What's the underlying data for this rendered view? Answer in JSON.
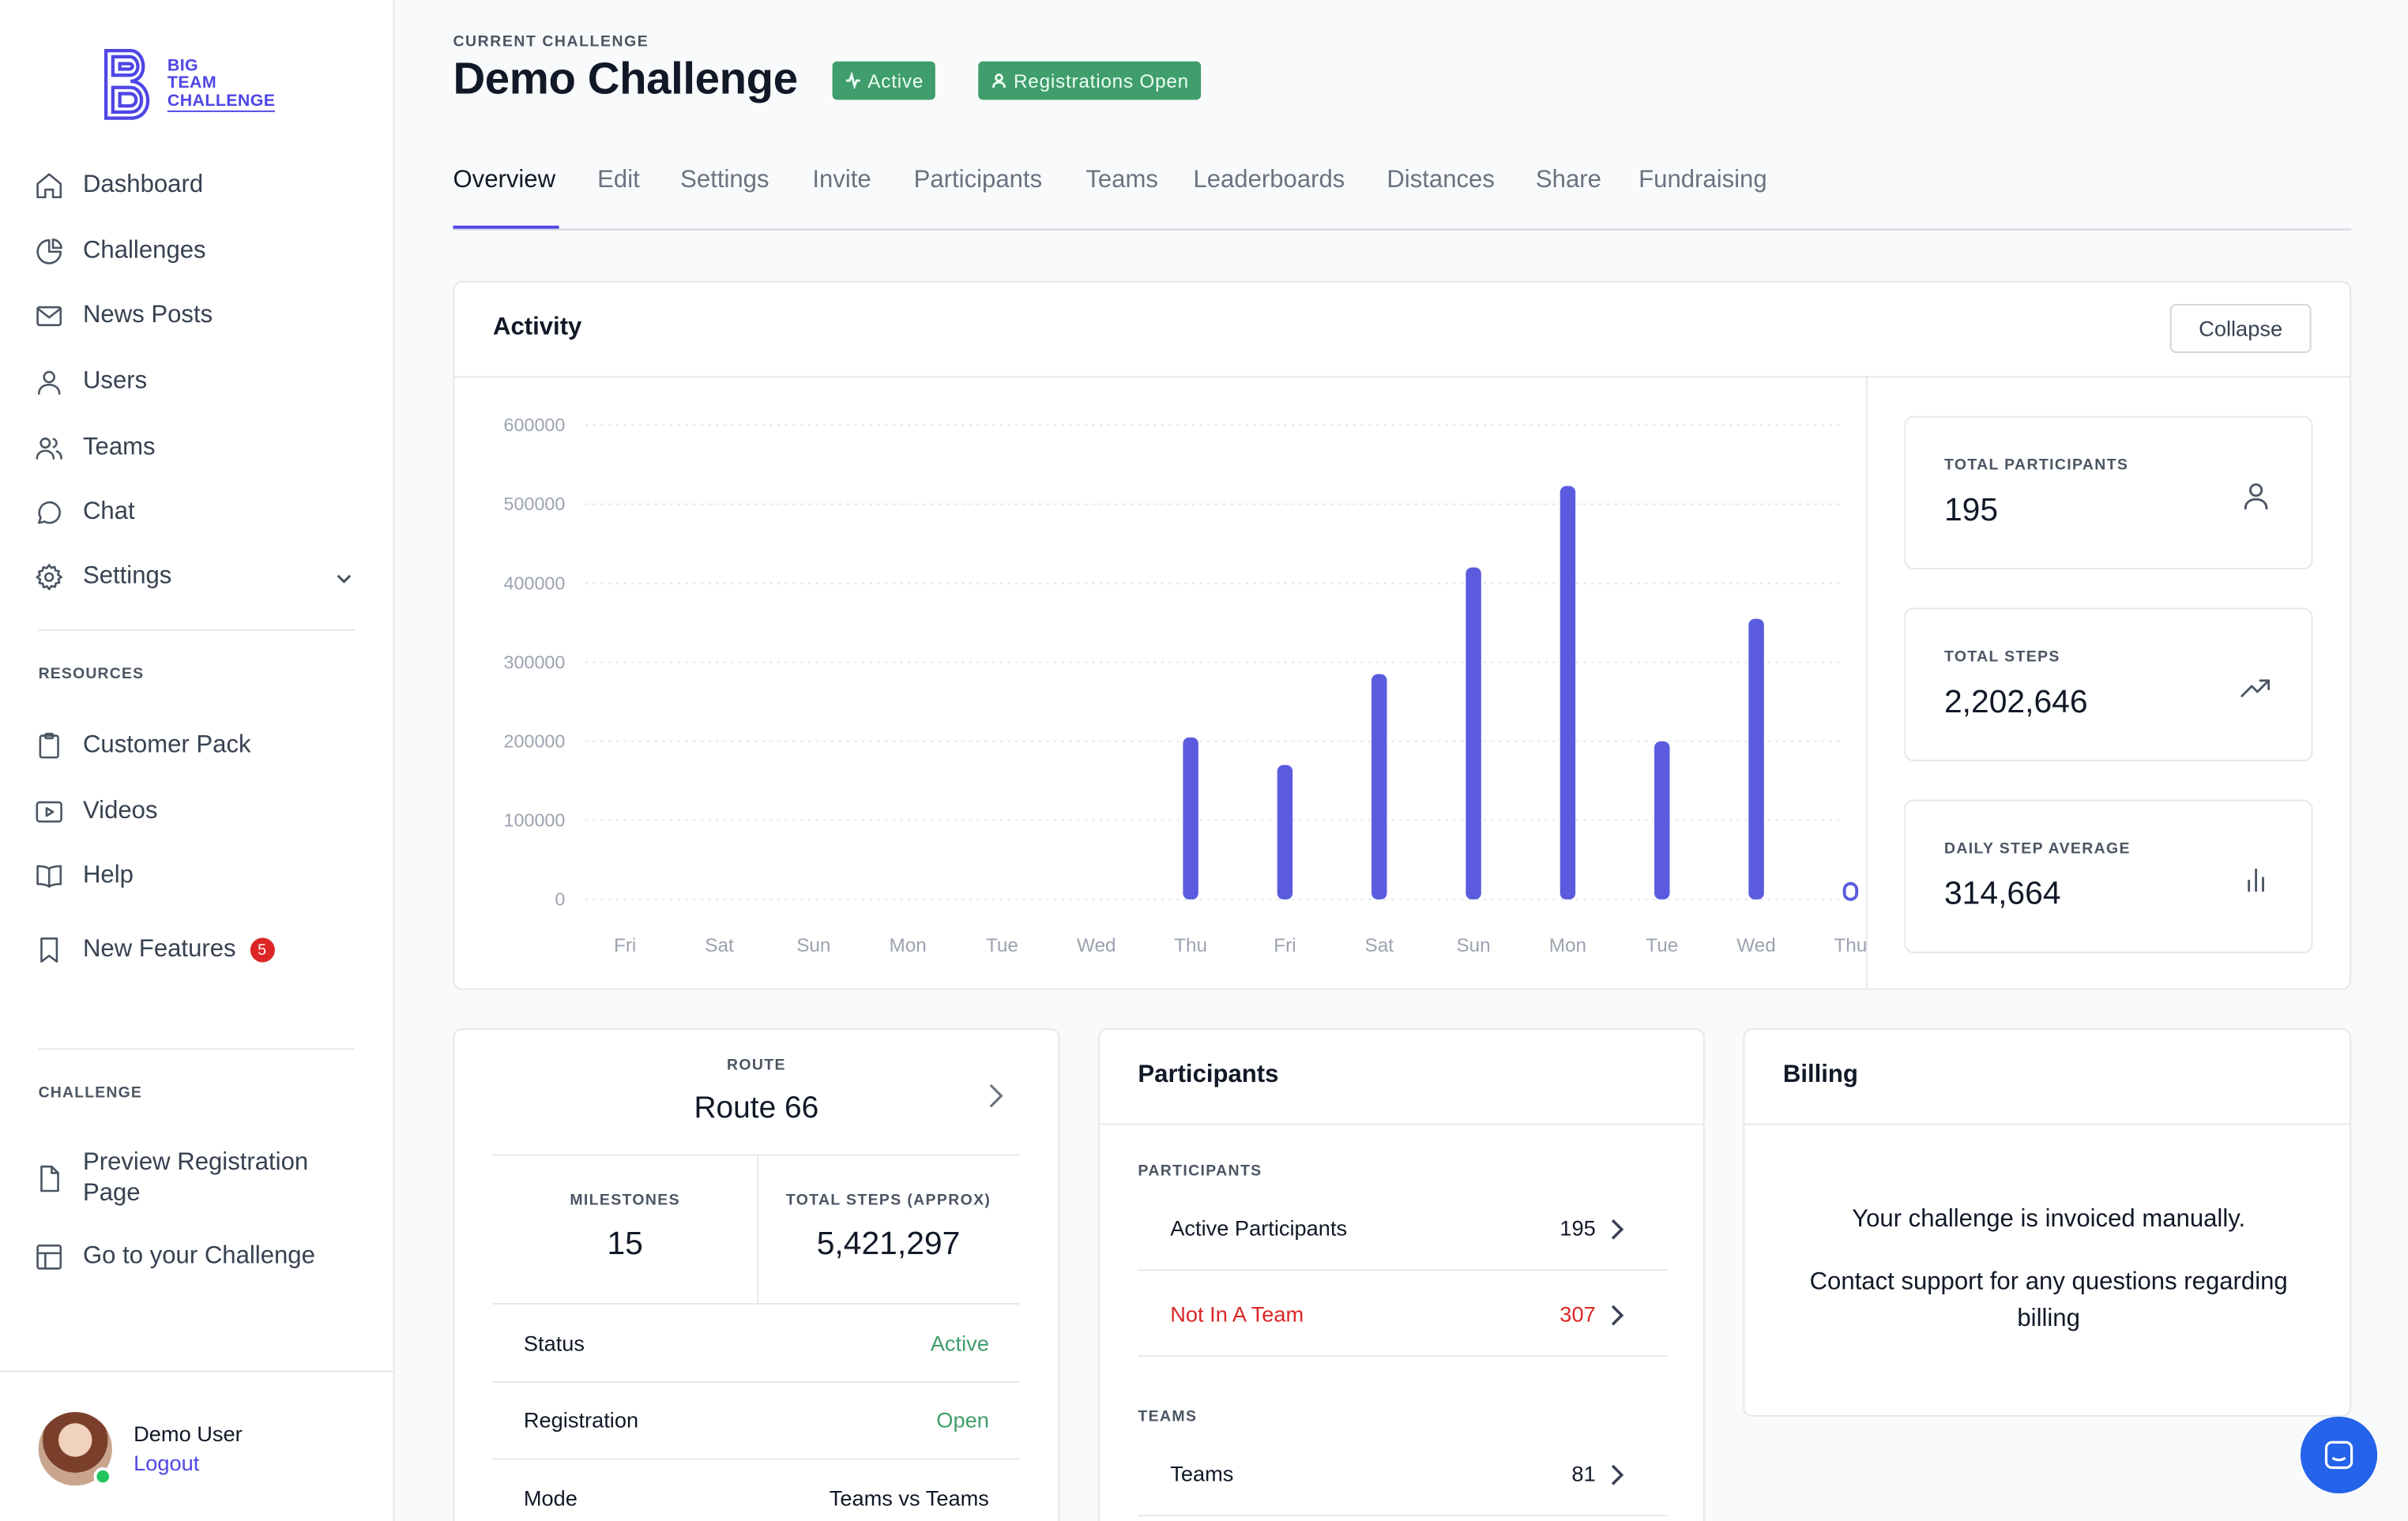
{
  "brand": {
    "line1": "BIG",
    "line2": "TEAM",
    "line3": "CHALLENGE",
    "accent": "#4f46e5"
  },
  "sidebar": {
    "items": [
      {
        "label": "Dashboard",
        "icon": "home-icon"
      },
      {
        "label": "Challenges",
        "icon": "pie-chart-icon"
      },
      {
        "label": "News Posts",
        "icon": "mail-icon"
      },
      {
        "label": "Users",
        "icon": "user-icon"
      },
      {
        "label": "Teams",
        "icon": "users-icon"
      },
      {
        "label": "Chat",
        "icon": "chat-bubble-icon"
      },
      {
        "label": "Settings",
        "icon": "gear-icon"
      }
    ],
    "resources_title": "RESOURCES",
    "resources": [
      {
        "label": "Customer Pack",
        "icon": "clipboard-icon"
      },
      {
        "label": "Videos",
        "icon": "video-icon"
      },
      {
        "label": "Help",
        "icon": "book-icon"
      },
      {
        "label": "New Features",
        "icon": "bookmark-icon",
        "badge": "5"
      }
    ],
    "challenge_title": "CHALLENGE",
    "challenge": [
      {
        "label": "Preview Registration",
        "label2": "Page",
        "icon": "document-icon"
      },
      {
        "label": "Go to your Challenge",
        "icon": "layout-icon"
      }
    ],
    "user": {
      "name": "Demo User",
      "logout": "Logout"
    }
  },
  "header": {
    "eyebrow": "CURRENT CHALLENGE",
    "title": "Demo Challenge",
    "status_badge": "Active",
    "registration_badge": "Registrations Open"
  },
  "tabs": [
    "Overview",
    "Edit",
    "Settings",
    "Invite",
    "Participants",
    "Teams",
    "Leaderboards",
    "Distances",
    "Share",
    "Fundraising"
  ],
  "activity": {
    "title": "Activity",
    "collapse_label": "Collapse",
    "stats": [
      {
        "label": "TOTAL PARTICIPANTS",
        "value": "195",
        "icon": "user-icon"
      },
      {
        "label": "TOTAL STEPS",
        "value": "2,202,646",
        "icon": "trending-up-icon"
      },
      {
        "label": "DAILY STEP AVERAGE",
        "value": "314,664",
        "icon": "bar-chart-icon"
      }
    ]
  },
  "chart_data": {
    "type": "bar",
    "categories": [
      "Fri",
      "Sat",
      "Sun",
      "Mon",
      "Tue",
      "Wed",
      "Thu",
      "Fri",
      "Sat",
      "Sun",
      "Mon",
      "Tue",
      "Wed",
      "Thu"
    ],
    "values": [
      0,
      0,
      0,
      0,
      0,
      0,
      205000,
      170000,
      285000,
      420000,
      523000,
      200000,
      355000,
      20000
    ],
    "yticks": [
      "0",
      "100000",
      "200000",
      "300000",
      "400000",
      "500000",
      "600000"
    ],
    "ylim": [
      0,
      600000
    ],
    "color": "#5b5bdf",
    "grid": true
  },
  "route": {
    "label": "ROUTE",
    "name": "Route 66",
    "milestones_label": "MILESTONES",
    "milestones_value": "15",
    "steps_label": "TOTAL STEPS (APPROX)",
    "steps_value": "5,421,297",
    "rows": [
      {
        "label": "Status",
        "value": "Active",
        "color": "#3f9e6b"
      },
      {
        "label": "Registration",
        "value": "Open",
        "color": "#3f9e6b"
      },
      {
        "label": "Mode",
        "value": "Teams vs Teams",
        "color": "#111827"
      }
    ]
  },
  "participants": {
    "title": "Participants",
    "section1": "PARTICIPANTS",
    "rows": [
      {
        "label": "Active Participants",
        "value": "195"
      },
      {
        "label": "Not In A Team",
        "value": "307",
        "color": "#dc2626"
      }
    ],
    "section2": "TEAMS",
    "team_rows": [
      {
        "label": "Teams",
        "value": "81"
      }
    ]
  },
  "billing": {
    "title": "Billing",
    "line1": "Your challenge is invoiced manually.",
    "line2": "Contact support for any questions regarding billing"
  }
}
